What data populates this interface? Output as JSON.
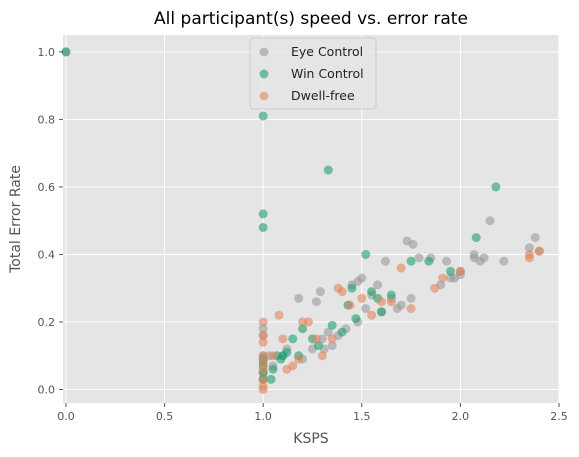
{
  "chart_data": {
    "type": "scatter",
    "title": "All participant(s) speed vs. error rate",
    "xlabel": "KSPS",
    "ylabel": "Total Error Rate",
    "xlim": [
      -0.015,
      2.5
    ],
    "ylim": [
      -0.04,
      1.05
    ],
    "xticks": [
      "0.0",
      "0.5",
      "1.0",
      "1.5",
      "2.0",
      "2.5"
    ],
    "xtick_values": [
      0,
      0.5,
      1.0,
      1.5,
      2.0,
      2.5
    ],
    "yticks": [
      "0.0",
      "0.2",
      "0.4",
      "0.6",
      "0.8",
      "1.0"
    ],
    "ytick_values": [
      0,
      0.2,
      0.4,
      0.6,
      0.8,
      1.0
    ],
    "grid": true,
    "legend_position": "top-center",
    "background": "#e5e5e5",
    "series": [
      {
        "name": "Eye Control",
        "color": "#999999",
        "points": [
          [
            0.0,
            1.0
          ],
          [
            1.0,
            0.18
          ],
          [
            1.0,
            0.16
          ],
          [
            1.0,
            0.1
          ],
          [
            1.0,
            0.08
          ],
          [
            1.0,
            0.05
          ],
          [
            1.0,
            0.03
          ],
          [
            1.03,
            0.1
          ],
          [
            1.05,
            0.07
          ],
          [
            1.1,
            0.1
          ],
          [
            1.12,
            0.12
          ],
          [
            1.18,
            0.27
          ],
          [
            1.2,
            0.09
          ],
          [
            1.25,
            0.12
          ],
          [
            1.27,
            0.26
          ],
          [
            1.29,
            0.29
          ],
          [
            1.3,
            0.15
          ],
          [
            1.31,
            0.12
          ],
          [
            1.33,
            0.17
          ],
          [
            1.35,
            0.13
          ],
          [
            1.38,
            0.16
          ],
          [
            1.42,
            0.18
          ],
          [
            1.45,
            0.31
          ],
          [
            1.48,
            0.32
          ],
          [
            1.5,
            0.33
          ],
          [
            1.48,
            0.2
          ],
          [
            1.52,
            0.24
          ],
          [
            1.55,
            0.28
          ],
          [
            1.58,
            0.31
          ],
          [
            1.6,
            0.23
          ],
          [
            1.62,
            0.38
          ],
          [
            1.65,
            0.27
          ],
          [
            1.68,
            0.24
          ],
          [
            1.7,
            0.25
          ],
          [
            1.73,
            0.44
          ],
          [
            1.75,
            0.27
          ],
          [
            1.76,
            0.43
          ],
          [
            1.79,
            0.39
          ],
          [
            1.85,
            0.39
          ],
          [
            1.9,
            0.31
          ],
          [
            1.93,
            0.38
          ],
          [
            1.95,
            0.33
          ],
          [
            1.97,
            0.33
          ],
          [
            2.0,
            0.35
          ],
          [
            2.0,
            0.34
          ],
          [
            2.07,
            0.39
          ],
          [
            2.07,
            0.4
          ],
          [
            2.1,
            0.38
          ],
          [
            2.12,
            0.39
          ],
          [
            2.15,
            0.5
          ],
          [
            2.22,
            0.38
          ],
          [
            2.35,
            0.42
          ],
          [
            2.38,
            0.45
          ],
          [
            2.4,
            0.41
          ]
        ]
      },
      {
        "name": "Win Control",
        "color": "#1aa06d",
        "points": [
          [
            0.0,
            1.0
          ],
          [
            1.0,
            0.81
          ],
          [
            1.0,
            0.52
          ],
          [
            1.0,
            0.48
          ],
          [
            1.0,
            0.09
          ],
          [
            1.0,
            0.07
          ],
          [
            1.0,
            0.05
          ],
          [
            1.0,
            0.03
          ],
          [
            1.04,
            0.03
          ],
          [
            1.05,
            0.06
          ],
          [
            1.07,
            0.1
          ],
          [
            1.09,
            0.09
          ],
          [
            1.1,
            0.1
          ],
          [
            1.12,
            0.11
          ],
          [
            1.15,
            0.15
          ],
          [
            1.18,
            0.1
          ],
          [
            1.2,
            0.18
          ],
          [
            1.25,
            0.15
          ],
          [
            1.28,
            0.13
          ],
          [
            1.33,
            0.65
          ],
          [
            1.35,
            0.19
          ],
          [
            1.4,
            0.17
          ],
          [
            1.43,
            0.25
          ],
          [
            1.45,
            0.3
          ],
          [
            1.47,
            0.21
          ],
          [
            1.52,
            0.4
          ],
          [
            1.55,
            0.29
          ],
          [
            1.58,
            0.27
          ],
          [
            1.6,
            0.23
          ],
          [
            1.65,
            0.28
          ],
          [
            1.75,
            0.38
          ],
          [
            1.84,
            0.38
          ],
          [
            1.95,
            0.35
          ],
          [
            2.08,
            0.45
          ],
          [
            2.18,
            0.6
          ]
        ]
      },
      {
        "name": "Dwell-free",
        "color": "#e0835a",
        "points": [
          [
            1.0,
            0.2
          ],
          [
            1.0,
            0.16
          ],
          [
            1.0,
            0.14
          ],
          [
            1.0,
            0.1
          ],
          [
            1.0,
            0.08
          ],
          [
            1.0,
            0.06
          ],
          [
            1.0,
            0.03
          ],
          [
            1.0,
            0.01
          ],
          [
            1.0,
            0.0
          ],
          [
            1.05,
            0.1
          ],
          [
            1.08,
            0.22
          ],
          [
            1.1,
            0.15
          ],
          [
            1.12,
            0.06
          ],
          [
            1.15,
            0.07
          ],
          [
            1.18,
            0.09
          ],
          [
            1.2,
            0.2
          ],
          [
            1.23,
            0.2
          ],
          [
            1.27,
            0.15
          ],
          [
            1.3,
            0.1
          ],
          [
            1.35,
            0.15
          ],
          [
            1.38,
            0.3
          ],
          [
            1.4,
            0.29
          ],
          [
            1.44,
            0.25
          ],
          [
            1.5,
            0.27
          ],
          [
            1.55,
            0.22
          ],
          [
            1.6,
            0.26
          ],
          [
            1.65,
            0.26
          ],
          [
            1.7,
            0.36
          ],
          [
            1.75,
            0.24
          ],
          [
            1.87,
            0.3
          ],
          [
            1.91,
            0.33
          ],
          [
            2.0,
            0.35
          ],
          [
            2.35,
            0.39
          ],
          [
            2.35,
            0.4
          ],
          [
            2.4,
            0.41
          ]
        ]
      }
    ]
  }
}
